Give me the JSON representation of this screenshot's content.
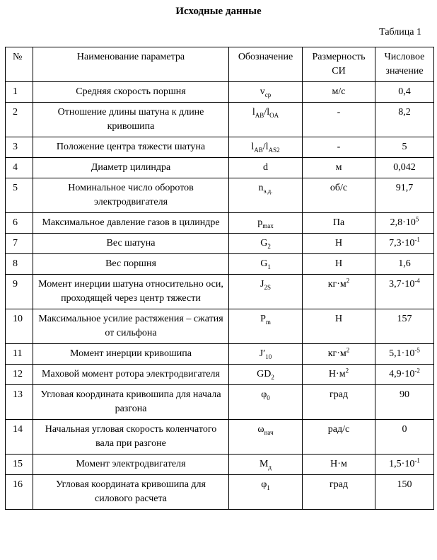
{
  "header": {
    "title": "Исходные данные",
    "caption": "Таблица 1"
  },
  "table": {
    "columns": [
      "№",
      "Наименование параметра",
      "Обозначение",
      "Размерность СИ",
      "Числовое значение"
    ],
    "rows": [
      {
        "n": "1",
        "name": "Средняя скорость поршня",
        "symbol": [
          {
            "text": "v"
          },
          {
            "text": "ср",
            "sub": true
          }
        ],
        "unit": [
          {
            "text": "м/с"
          }
        ],
        "value": [
          {
            "text": "0,4"
          }
        ]
      },
      {
        "n": "2",
        "name": "Отношение длины шатуна к длине кривошипа",
        "symbol": [
          {
            "text": "l"
          },
          {
            "text": "AB",
            "sub": true
          },
          {
            "text": "/l"
          },
          {
            "text": "OA",
            "sub": true
          }
        ],
        "unit": [
          {
            "text": "-"
          }
        ],
        "value": [
          {
            "text": "8,2"
          }
        ]
      },
      {
        "n": "3",
        "name": "Положение центра тяжести шатуна",
        "symbol": [
          {
            "text": "l"
          },
          {
            "text": "AB",
            "sub": true
          },
          {
            "text": "/l"
          },
          {
            "text": "AS2",
            "sub": true
          }
        ],
        "unit": [
          {
            "text": "-"
          }
        ],
        "value": [
          {
            "text": "5"
          }
        ]
      },
      {
        "n": "4",
        "name": "Диаметр цилиндра",
        "symbol": [
          {
            "text": "d"
          }
        ],
        "unit": [
          {
            "text": "м"
          }
        ],
        "value": [
          {
            "text": "0,042"
          }
        ]
      },
      {
        "n": "5",
        "name": "Номинальное число оборотов электродвигателя",
        "symbol": [
          {
            "text": "n"
          },
          {
            "text": "э.д.",
            "sub": true
          }
        ],
        "unit": [
          {
            "text": "об/с"
          }
        ],
        "value": [
          {
            "text": "91,7"
          }
        ]
      },
      {
        "n": "6",
        "name": "Максимальное давление газов в цилиндре",
        "symbol": [
          {
            "text": "p"
          },
          {
            "text": "max",
            "sub": true
          }
        ],
        "unit": [
          {
            "text": "Па"
          }
        ],
        "value": [
          {
            "text": "2,8·10"
          },
          {
            "text": "5",
            "sup": true
          }
        ]
      },
      {
        "n": "7",
        "name": "Вес шатуна",
        "symbol": [
          {
            "text": "G"
          },
          {
            "text": "2",
            "sub": true
          }
        ],
        "unit": [
          {
            "text": "Н"
          }
        ],
        "value": [
          {
            "text": "7,3·10"
          },
          {
            "text": "-1",
            "sup": true
          }
        ]
      },
      {
        "n": "8",
        "name": "Вес поршня",
        "symbol": [
          {
            "text": "G"
          },
          {
            "text": "1",
            "sub": true
          }
        ],
        "unit": [
          {
            "text": "Н"
          }
        ],
        "value": [
          {
            "text": "1,6"
          }
        ]
      },
      {
        "n": "9",
        "name": "Момент инерции шатуна относительно оси, проходящей через центр тяжести",
        "symbol": [
          {
            "text": "J"
          },
          {
            "text": "2S",
            "sub": true
          }
        ],
        "unit": [
          {
            "text": "кг·м"
          },
          {
            "text": "2",
            "sup": true
          }
        ],
        "value": [
          {
            "text": "3,7·10"
          },
          {
            "text": "-4",
            "sup": true
          }
        ]
      },
      {
        "n": "10",
        "name": "Максимальное усилие растяжения – сжатия от сильфона",
        "symbol": [
          {
            "text": "P"
          },
          {
            "text": "m",
            "sub": true
          }
        ],
        "unit": [
          {
            "text": "Н"
          }
        ],
        "value": [
          {
            "text": "157"
          }
        ]
      },
      {
        "n": "11",
        "name": "Момент инерции кривошипа",
        "symbol": [
          {
            "text": "J′"
          },
          {
            "text": "10",
            "sub": true
          }
        ],
        "unit": [
          {
            "text": "кг·м"
          },
          {
            "text": "2",
            "sup": true
          }
        ],
        "value": [
          {
            "text": "5,1·10"
          },
          {
            "text": "-5",
            "sup": true
          }
        ]
      },
      {
        "n": "12",
        "name": "Маховой момент ротора электродвигателя",
        "symbol": [
          {
            "text": "GD"
          },
          {
            "text": "2",
            "sub": true
          }
        ],
        "unit": [
          {
            "text": "Н·м"
          },
          {
            "text": "2",
            "sup": true
          }
        ],
        "value": [
          {
            "text": "4,9·10"
          },
          {
            "text": "-2",
            "sup": true
          }
        ]
      },
      {
        "n": "13",
        "name": "Угловая координата кривошипа для начала разгона",
        "symbol": [
          {
            "text": "φ"
          },
          {
            "text": "0",
            "sub": true
          }
        ],
        "unit": [
          {
            "text": "град"
          }
        ],
        "value": [
          {
            "text": "90"
          }
        ]
      },
      {
        "n": "14",
        "name": "Начальная угловая скорость коленчатого вала при разгоне",
        "symbol": [
          {
            "text": "ω"
          },
          {
            "text": "нач",
            "sub": true
          }
        ],
        "unit": [
          {
            "text": "рад/с"
          }
        ],
        "value": [
          {
            "text": "0"
          }
        ]
      },
      {
        "n": "15",
        "name": "Момент электродвигателя",
        "symbol": [
          {
            "text": "M"
          },
          {
            "text": "д",
            "sub": true
          }
        ],
        "unit": [
          {
            "text": "Н·м"
          }
        ],
        "value": [
          {
            "text": "1,5·10"
          },
          {
            "text": "-1",
            "sup": true
          }
        ]
      },
      {
        "n": "16",
        "name": "Угловая координата кривошипа для силового расчета",
        "symbol": [
          {
            "text": "φ"
          },
          {
            "text": "1",
            "sub": true
          }
        ],
        "unit": [
          {
            "text": "град"
          }
        ],
        "value": [
          {
            "text": "150"
          }
        ]
      }
    ]
  }
}
